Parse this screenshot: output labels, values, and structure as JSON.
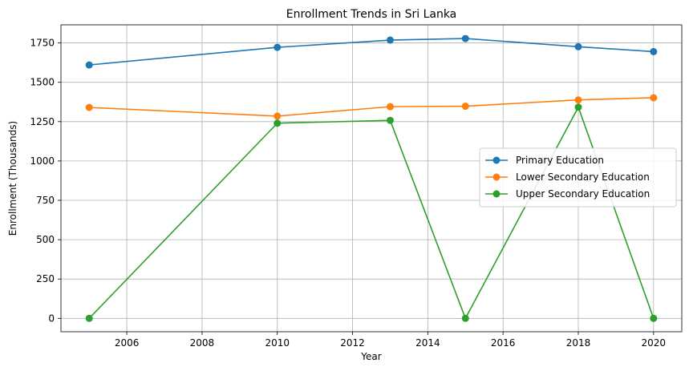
{
  "chart_data": {
    "type": "line",
    "title": "Enrollment Trends in Sri Lanka",
    "xlabel": "Year",
    "ylabel": "Enrollment (Thousands)",
    "xlim": [
      2004.25,
      2020.75
    ],
    "ylim": [
      -85,
      1865
    ],
    "xticks": [
      2006,
      2008,
      2010,
      2012,
      2014,
      2016,
      2018,
      2020
    ],
    "yticks": [
      0,
      250,
      500,
      750,
      1000,
      1250,
      1500,
      1750
    ],
    "grid": true,
    "legend_position": "center-right",
    "x": [
      2005,
      2010,
      2013,
      2015,
      2018,
      2020
    ],
    "series": [
      {
        "name": "Primary Education",
        "color": "#1f77b4",
        "values": [
          1610,
          1722,
          1768,
          1778,
          1726,
          1695
        ]
      },
      {
        "name": "Lower Secondary Education",
        "color": "#ff7f0e",
        "values": [
          1340,
          1285,
          1345,
          1348,
          1388,
          1402
        ]
      },
      {
        "name": "Upper Secondary Education",
        "color": "#2ca02c",
        "values": [
          0,
          1240,
          1258,
          0,
          1342,
          0
        ]
      }
    ]
  }
}
